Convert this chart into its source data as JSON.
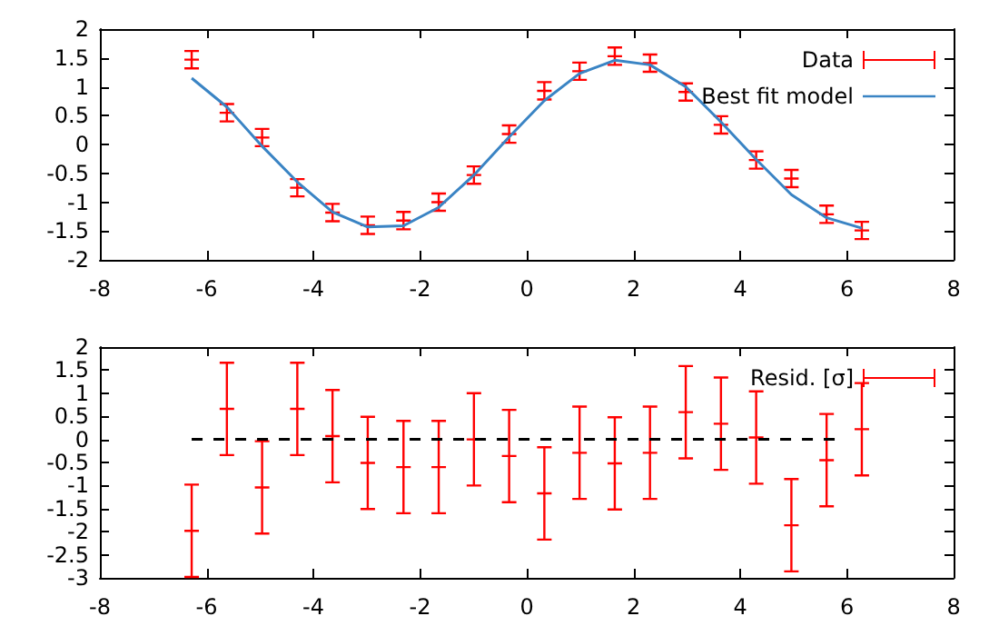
{
  "chart_data": [
    {
      "type": "scatter",
      "x": [
        -6.28,
        -5.62,
        -4.96,
        -4.3,
        -3.64,
        -2.98,
        -2.31,
        -1.65,
        -0.99,
        -0.33,
        0.33,
        0.99,
        1.65,
        2.31,
        2.98,
        3.64,
        4.3,
        4.96,
        5.62,
        6.28
      ],
      "series": [
        {
          "name": "Data",
          "color": "#ff0000",
          "marker": "cross",
          "values": [
            1.47,
            0.55,
            0.12,
            -0.75,
            -1.18,
            -1.4,
            -1.32,
            -1.0,
            -0.53,
            0.18,
            0.93,
            1.27,
            1.53,
            1.41,
            0.91,
            0.34,
            -0.27,
            -0.59,
            -1.21,
            -1.49
          ],
          "errors": [
            0.15,
            0.15,
            0.15,
            0.15,
            0.15,
            0.15,
            0.15,
            0.15,
            0.15,
            0.15,
            0.15,
            0.15,
            0.15,
            0.15,
            0.15,
            0.15,
            0.15,
            0.15,
            0.15,
            0.15
          ]
        },
        {
          "name": "Best fit model",
          "type": "line",
          "color": "#3a84c4",
          "marker": "none",
          "line_style": "solid",
          "values": [
            1.15,
            0.65,
            -0.03,
            -0.65,
            -1.17,
            -1.43,
            -1.41,
            -1.09,
            -0.53,
            0.13,
            0.76,
            1.23,
            1.46,
            1.38,
            1.0,
            0.39,
            -0.26,
            -0.87,
            -1.27,
            -1.45
          ]
        }
      ],
      "xlim": [
        -8,
        8
      ],
      "xticks": [
        -8,
        -6,
        -4,
        -2,
        0,
        2,
        4,
        6,
        8
      ],
      "ylim": [
        -2,
        2
      ],
      "yticks": [
        -2,
        -1.5,
        -1,
        -0.5,
        0,
        0.5,
        1,
        1.5,
        2
      ],
      "grid": false,
      "legend": "top right"
    },
    {
      "type": "scatter",
      "x": [
        -6.28,
        -5.62,
        -4.96,
        -4.3,
        -3.64,
        -2.98,
        -2.31,
        -1.65,
        -0.99,
        -0.33,
        0.33,
        0.99,
        1.65,
        2.31,
        2.98,
        3.64,
        4.3,
        4.96,
        5.62,
        6.28
      ],
      "series": [
        {
          "name": "Resid. [σ]",
          "color": "#ff0000",
          "marker": "cross",
          "values": [
            -1.98,
            0.66,
            -1.04,
            0.66,
            0.07,
            -0.51,
            -0.6,
            -0.6,
            0.0,
            -0.36,
            -1.17,
            -0.29,
            -0.52,
            -0.29,
            0.59,
            0.34,
            0.04,
            -1.86,
            -0.45,
            0.22
          ],
          "errors": [
            1,
            1,
            1,
            1,
            1,
            1,
            1,
            1,
            1,
            1,
            1,
            1,
            1,
            1,
            1,
            1,
            1,
            1,
            1,
            1
          ]
        },
        {
          "type": "line",
          "color": "#000000",
          "marker": "none",
          "line_style": "dashed",
          "x": [
            -6.28,
            5.84
          ],
          "values": [
            0,
            0
          ]
        }
      ],
      "xlim": [
        -8,
        8
      ],
      "xticks": [
        -8,
        -6,
        -4,
        -2,
        0,
        2,
        4,
        6,
        8
      ],
      "ylim": [
        -3,
        2
      ],
      "yticks": [
        -3,
        -2.5,
        -2,
        -1.5,
        -1,
        -0.5,
        0,
        0.5,
        1,
        1.5,
        2
      ],
      "grid": false,
      "legend": "top right"
    }
  ]
}
